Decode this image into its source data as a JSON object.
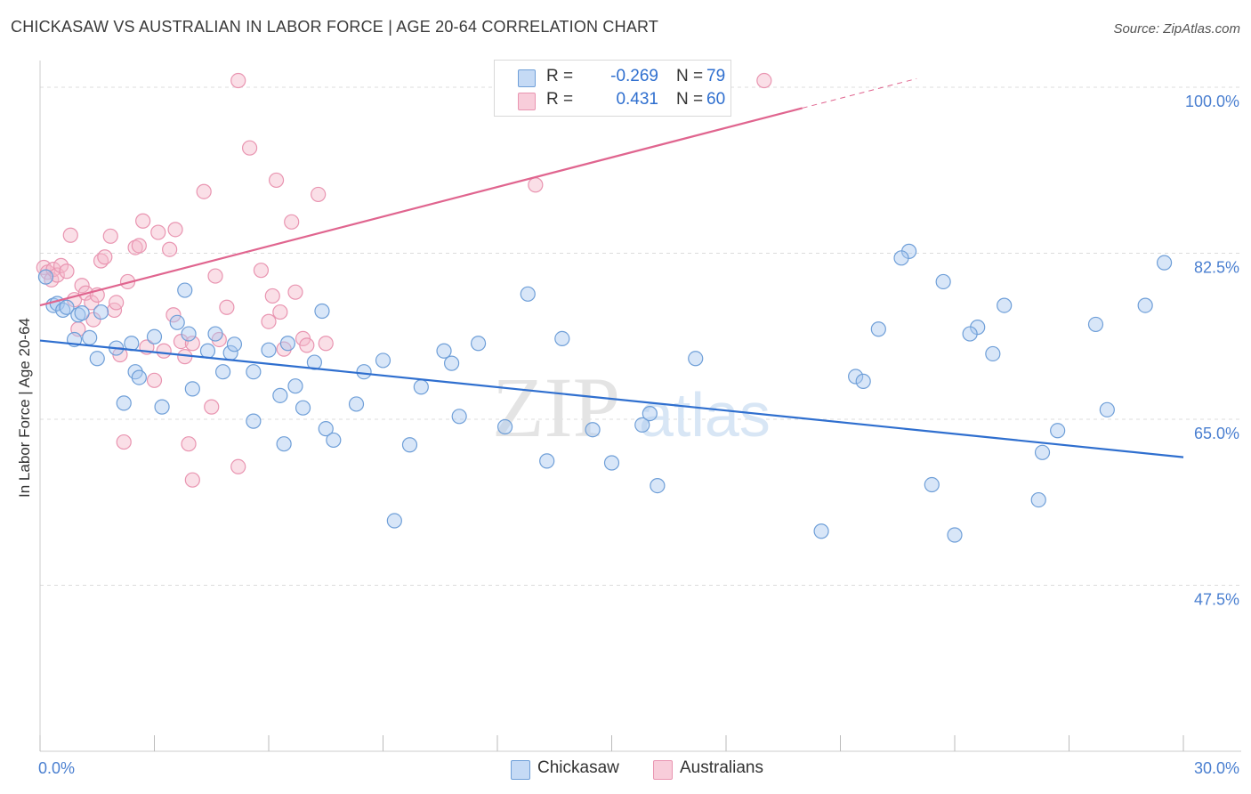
{
  "title": "CHICKASAW VS AUSTRALIAN IN LABOR FORCE | AGE 20-64 CORRELATION CHART",
  "source": "Source: ZipAtlas.com",
  "watermark": {
    "zip": "ZIP",
    "atlas": "atlas"
  },
  "legend_top": [
    {
      "r_label": "R =",
      "r_value": "-0.269",
      "n_label": "N =",
      "n_value": "79"
    },
    {
      "r_label": "R =",
      "r_value": "0.431",
      "n_label": "N =",
      "n_value": "60"
    }
  ],
  "colors": {
    "blue_fill": "#a9c8ef",
    "blue_stroke": "#6f9fd8",
    "blue_line": "#2f6fcf",
    "pink_fill": "#f4b7c9",
    "pink_stroke": "#e995b1",
    "pink_line": "#e0658f",
    "tick_text": "#4a7fd0",
    "grid": "#dcdcdc",
    "axis": "#cccccc"
  },
  "chart_data": {
    "type": "scatter",
    "title": "CHICKASAW VS AUSTRALIAN IN LABOR FORCE | AGE 20-64 CORRELATION CHART",
    "xlabel": "",
    "ylabel": "In Labor Force | Age 20-64",
    "xlim": [
      0,
      30
    ],
    "ylim": [
      30,
      101.5
    ],
    "x_tick_labels": [
      "0.0%",
      "30.0%"
    ],
    "y_ticks": [
      47.5,
      65.0,
      82.5,
      100.0
    ],
    "y_tick_labels": [
      "47.5%",
      "65.0%",
      "82.5%",
      "100.0%"
    ],
    "grid": true,
    "legend_position": "bottom-center",
    "series": [
      {
        "name": "Chickasaw",
        "r": -0.269,
        "n": 79,
        "trend": {
          "x": [
            0,
            30
          ],
          "y": [
            73.3,
            61.0
          ]
        },
        "x": [
          0.15,
          0.35,
          0.45,
          0.6,
          0.7,
          0.9,
          1.0,
          1.1,
          1.3,
          1.5,
          1.6,
          2.0,
          2.2,
          2.4,
          2.5,
          2.6,
          3.0,
          3.2,
          3.6,
          3.8,
          3.9,
          4.0,
          4.4,
          4.6,
          4.8,
          5.0,
          5.1,
          5.6,
          5.6,
          6.0,
          6.3,
          6.4,
          6.5,
          6.7,
          6.9,
          7.2,
          7.4,
          7.5,
          7.7,
          8.3,
          8.5,
          9.0,
          9.3,
          9.7,
          10.0,
          10.6,
          10.8,
          11.0,
          11.5,
          12.2,
          12.8,
          13.3,
          13.7,
          14.5,
          15.0,
          15.8,
          16.0,
          16.2,
          17.2,
          20.5,
          21.4,
          21.6,
          22.0,
          22.8,
          23.4,
          24.0,
          24.6,
          25.3,
          26.2,
          26.3,
          26.7,
          28.0,
          29.0,
          24.4,
          23.7,
          22.6,
          29.5,
          27.7,
          25.0
        ],
        "y": [
          80,
          77,
          77.2,
          76.5,
          76.8,
          73.4,
          76,
          76.2,
          73.6,
          71.4,
          76.3,
          72.5,
          66.7,
          73,
          70,
          69.4,
          73.7,
          66.3,
          75.2,
          78.6,
          74,
          68.2,
          72.2,
          74,
          70,
          72,
          72.9,
          70,
          64.8,
          72.3,
          67.5,
          62.4,
          73,
          68.5,
          66.2,
          71,
          76.4,
          64,
          62.8,
          66.6,
          70,
          71.2,
          54.3,
          62.3,
          68.4,
          72.2,
          70.9,
          65.3,
          73,
          64.2,
          78.2,
          60.6,
          73.5,
          63.9,
          60.4,
          64.4,
          65.6,
          58,
          71.4,
          53.2,
          69.5,
          69,
          74.5,
          82.7,
          58.1,
          52.8,
          74.7,
          77,
          56.5,
          61.5,
          63.8,
          66,
          77,
          74,
          79.5,
          82,
          81.5,
          75,
          71.9
        ]
      },
      {
        "name": "Australians",
        "r": 0.431,
        "n": 60,
        "trend": {
          "x": [
            0,
            20
          ],
          "y": [
            77.0,
            97.8
          ]
        },
        "trend_dashed": {
          "x": [
            20,
            23
          ],
          "y": [
            97.8,
            100.9
          ]
        },
        "x": [
          0.1,
          0.2,
          0.3,
          0.35,
          0.45,
          0.55,
          0.7,
          0.8,
          0.9,
          1.0,
          1.1,
          1.2,
          1.35,
          1.5,
          1.6,
          1.7,
          1.85,
          1.95,
          2.1,
          2.2,
          2.3,
          2.5,
          2.7,
          2.8,
          3.1,
          3.25,
          3.4,
          3.5,
          3.55,
          3.7,
          3.9,
          4.0,
          4.3,
          4.5,
          4.6,
          4.7,
          4.9,
          5.2,
          5.5,
          5.8,
          6.0,
          6.1,
          6.2,
          6.4,
          6.6,
          6.7,
          6.9,
          7.0,
          7.3,
          7.5,
          2.6,
          3.0,
          2.0,
          1.4,
          4.0,
          5.2,
          6.3,
          3.8,
          13.0,
          19.0
        ],
        "y": [
          81,
          80.5,
          79.7,
          80.8,
          80.2,
          81.2,
          80.6,
          84.4,
          77.6,
          74.5,
          79.1,
          78.3,
          77.3,
          78.1,
          81.7,
          82.1,
          84.3,
          76.5,
          71.8,
          62.6,
          79.5,
          83.1,
          85.9,
          72.6,
          84.7,
          72.2,
          82.9,
          76,
          85,
          73.2,
          62.4,
          73,
          89,
          66.3,
          80.1,
          73.4,
          76.8,
          100.7,
          93.6,
          80.7,
          75.3,
          78,
          90.2,
          72.4,
          85.8,
          78.4,
          73.5,
          72.8,
          88.7,
          73,
          83.3,
          69.1,
          77.3,
          75.5,
          58.6,
          60,
          76.3,
          71.6,
          89.7,
          100.7
        ]
      }
    ]
  },
  "axis": {
    "y_label": "In Labor Force | Age 20-64",
    "x_min_label": "0.0%",
    "x_max_label": "30.0%",
    "y_labels": [
      "47.5%",
      "65.0%",
      "82.5%",
      "100.0%"
    ]
  },
  "legend_bottom": [
    "Chickasaw",
    "Australians"
  ]
}
